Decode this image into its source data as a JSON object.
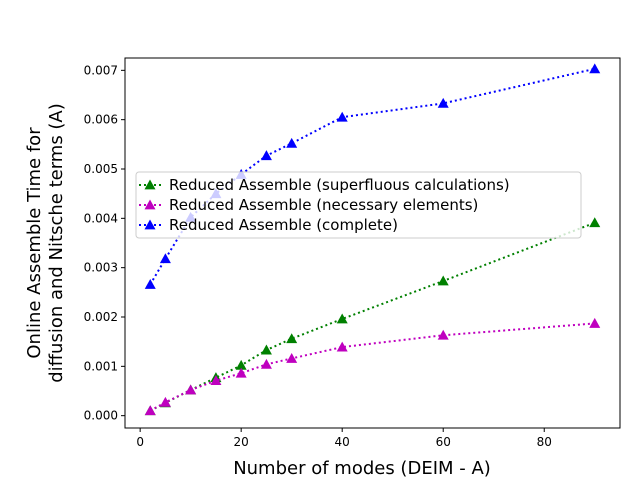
{
  "chart_data": {
    "type": "line",
    "xlabel": "Number of modes (DEIM - A)",
    "ylabel_lines": [
      "Online Assemble Time for",
      "diffusion and Nitsche terms (A)"
    ],
    "xlim": [
      -3,
      95
    ],
    "ylim": [
      -0.00025,
      0.00725
    ],
    "x_ticks": [
      0,
      20,
      40,
      60,
      80
    ],
    "x_tick_labels": [
      "0",
      "20",
      "40",
      "60",
      "80"
    ],
    "y_ticks": [
      0.0,
      0.001,
      0.002,
      0.003,
      0.004,
      0.005,
      0.006,
      0.007
    ],
    "y_tick_labels": [
      "0.000",
      "0.001",
      "0.002",
      "0.003",
      "0.004",
      "0.005",
      "0.006",
      "0.007"
    ],
    "grid": false,
    "legend_position": "center-left",
    "series": [
      {
        "name": "Reduced Assemble (superfluous calculations)",
        "color": "#008000",
        "marker": "triangle",
        "line_style": "dotted",
        "x": [
          2,
          5,
          10,
          15,
          20,
          25,
          30,
          40,
          60,
          90
        ],
        "y": [
          0.0001,
          0.00026,
          0.00052,
          0.00077,
          0.00102,
          0.00133,
          0.00156,
          0.00196,
          0.00273,
          0.00391
        ]
      },
      {
        "name": "Reduced Assemble (necessary elements)",
        "color": "#bf00bf",
        "marker": "triangle",
        "line_style": "dotted",
        "x": [
          2,
          5,
          10,
          15,
          20,
          25,
          30,
          40,
          60,
          90
        ],
        "y": [
          0.0001,
          0.00027,
          0.00052,
          0.00071,
          0.00086,
          0.00104,
          0.00116,
          0.00139,
          0.00163,
          0.00187
        ]
      },
      {
        "name": "Reduced Assemble (complete)",
        "color": "#0000ff",
        "marker": "triangle",
        "line_style": "dotted",
        "x": [
          2,
          5,
          10,
          15,
          20,
          25,
          30,
          40,
          60,
          90
        ],
        "y": [
          0.00266,
          0.00318,
          0.00402,
          0.0045,
          0.00489,
          0.00527,
          0.00552,
          0.00605,
          0.00633,
          0.00703
        ]
      }
    ]
  }
}
